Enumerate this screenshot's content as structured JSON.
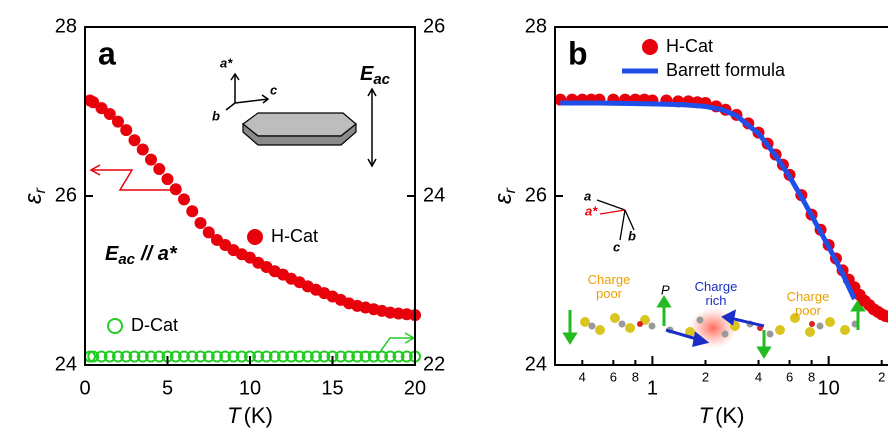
{
  "chart_data": [
    {
      "type": "scatter",
      "panel": "a",
      "xlabel": "T",
      "xlabel_unit": "(K)",
      "ylabel": "ε",
      "ylabel_sub": "r",
      "xlim": [
        0,
        20
      ],
      "xticks": [
        0,
        5,
        10,
        15,
        20
      ],
      "ylim": [
        24,
        28
      ],
      "yticks": [
        24,
        26,
        28
      ],
      "y2lim": [
        22,
        26
      ],
      "y2ticks": [
        22,
        24,
        26
      ],
      "legend": "inline",
      "x": [
        0.3,
        0.5,
        1,
        1.5,
        2,
        2.5,
        3,
        3.5,
        4,
        4.5,
        5,
        5.5,
        6,
        6.5,
        7,
        7.5,
        8,
        8.5,
        9,
        9.5,
        10,
        10.5,
        11,
        11.5,
        12,
        12.5,
        13,
        13.5,
        14,
        14.5,
        15,
        15.5,
        16,
        16.5,
        17,
        17.5,
        18,
        18.5,
        19,
        19.5,
        20
      ],
      "series": [
        {
          "name": "H-Cat",
          "color": "#e8000b",
          "marker": "filled",
          "values": [
            27.13,
            27.11,
            27.04,
            26.97,
            26.88,
            26.78,
            26.66,
            26.55,
            26.43,
            26.32,
            26.2,
            26.08,
            25.96,
            25.82,
            25.68,
            25.57,
            25.48,
            25.42,
            25.36,
            25.31,
            25.27,
            25.21,
            25.16,
            25.11,
            25.07,
            25.02,
            24.98,
            24.93,
            24.89,
            24.85,
            24.81,
            24.77,
            24.73,
            24.7,
            24.68,
            24.66,
            24.64,
            24.62,
            24.61,
            24.6,
            24.59
          ]
        },
        {
          "name": "D-Cat",
          "color": "#22cc22",
          "marker": "open",
          "axis": "y2",
          "values": [
            22.1,
            22.1,
            22.1,
            22.1,
            22.1,
            22.1,
            22.1,
            22.1,
            22.1,
            22.1,
            22.1,
            22.1,
            22.1,
            22.1,
            22.1,
            22.1,
            22.1,
            22.1,
            22.1,
            22.1,
            22.1,
            22.1,
            22.1,
            22.1,
            22.1,
            22.1,
            22.1,
            22.1,
            22.1,
            22.1,
            22.1,
            22.1,
            22.1,
            22.1,
            22.1,
            22.1,
            22.1,
            22.1,
            22.1,
            22.1,
            22.1
          ]
        }
      ],
      "annotations": {
        "inset_a": "a*",
        "inset_b": "b",
        "inset_c": "c",
        "field": "E",
        "field_sub": "ac",
        "condition": "E",
        "condition_sub": "ac",
        "condition_rest": "// a*"
      }
    },
    {
      "type": "scatter",
      "panel": "b",
      "xlabel": "T",
      "xlabel_unit": "(K)",
      "ylabel": "ε",
      "ylabel_sub": "r",
      "xscale": "log",
      "xlim": [
        0.28,
        22
      ],
      "xticks": [
        {
          "value": 0.4,
          "label": "4"
        },
        {
          "value": 0.6,
          "label": "6"
        },
        {
          "value": 0.8,
          "label": "8"
        },
        1,
        {
          "value": 2,
          "label": "2"
        },
        {
          "value": 4,
          "label": "4"
        },
        {
          "value": 6,
          "label": "6"
        },
        {
          "value": 8,
          "label": "8"
        },
        10,
        {
          "value": 20,
          "label": "2"
        }
      ],
      "ylim": [
        24,
        28
      ],
      "yticks": [
        24,
        26,
        28
      ],
      "legend": "upper left",
      "series": [
        {
          "name": "H-Cat",
          "color": "#e8000b",
          "marker": "filled",
          "x": [
            0.3,
            0.35,
            0.4,
            0.45,
            0.5,
            0.6,
            0.7,
            0.8,
            0.9,
            1,
            1.2,
            1.4,
            1.6,
            1.8,
            2,
            2.3,
            2.6,
            3,
            3.5,
            4,
            4.5,
            5,
            5.5,
            6,
            7,
            8,
            9,
            10,
            11,
            12,
            13,
            14,
            15,
            16,
            17,
            18,
            19,
            20,
            21,
            22
          ],
          "values": [
            27.14,
            27.14,
            27.14,
            27.14,
            27.14,
            27.14,
            27.14,
            27.14,
            27.14,
            27.13,
            27.13,
            27.12,
            27.12,
            27.11,
            27.1,
            27.06,
            27.02,
            26.96,
            26.86,
            26.75,
            26.62,
            26.49,
            26.37,
            26.25,
            26.01,
            25.78,
            25.6,
            25.42,
            25.26,
            25.12,
            25.01,
            24.92,
            24.83,
            24.76,
            24.71,
            24.66,
            24.63,
            24.6,
            24.58,
            24.57
          ]
        },
        {
          "name": "Barrett formula",
          "color": "#1f4fe8",
          "style": "line",
          "x": [
            0.3,
            0.5,
            1,
            1.5,
            2,
            2.5,
            3,
            4,
            5,
            6,
            7,
            8,
            10,
            12,
            14
          ],
          "values": [
            27.1,
            27.1,
            27.09,
            27.08,
            27.06,
            27.02,
            26.95,
            26.74,
            26.48,
            26.23,
            25.99,
            25.77,
            25.4,
            25.08,
            24.78
          ]
        }
      ],
      "annotations": {
        "axis_a": "a",
        "axis_astar": "a*",
        "axis_b": "b",
        "axis_c": "c",
        "polarization": "P",
        "left_poor": [
          "Charge",
          "poor"
        ],
        "rich": [
          "Charge",
          "rich"
        ],
        "right_poor": [
          "Charge",
          "poor"
        ]
      }
    }
  ]
}
